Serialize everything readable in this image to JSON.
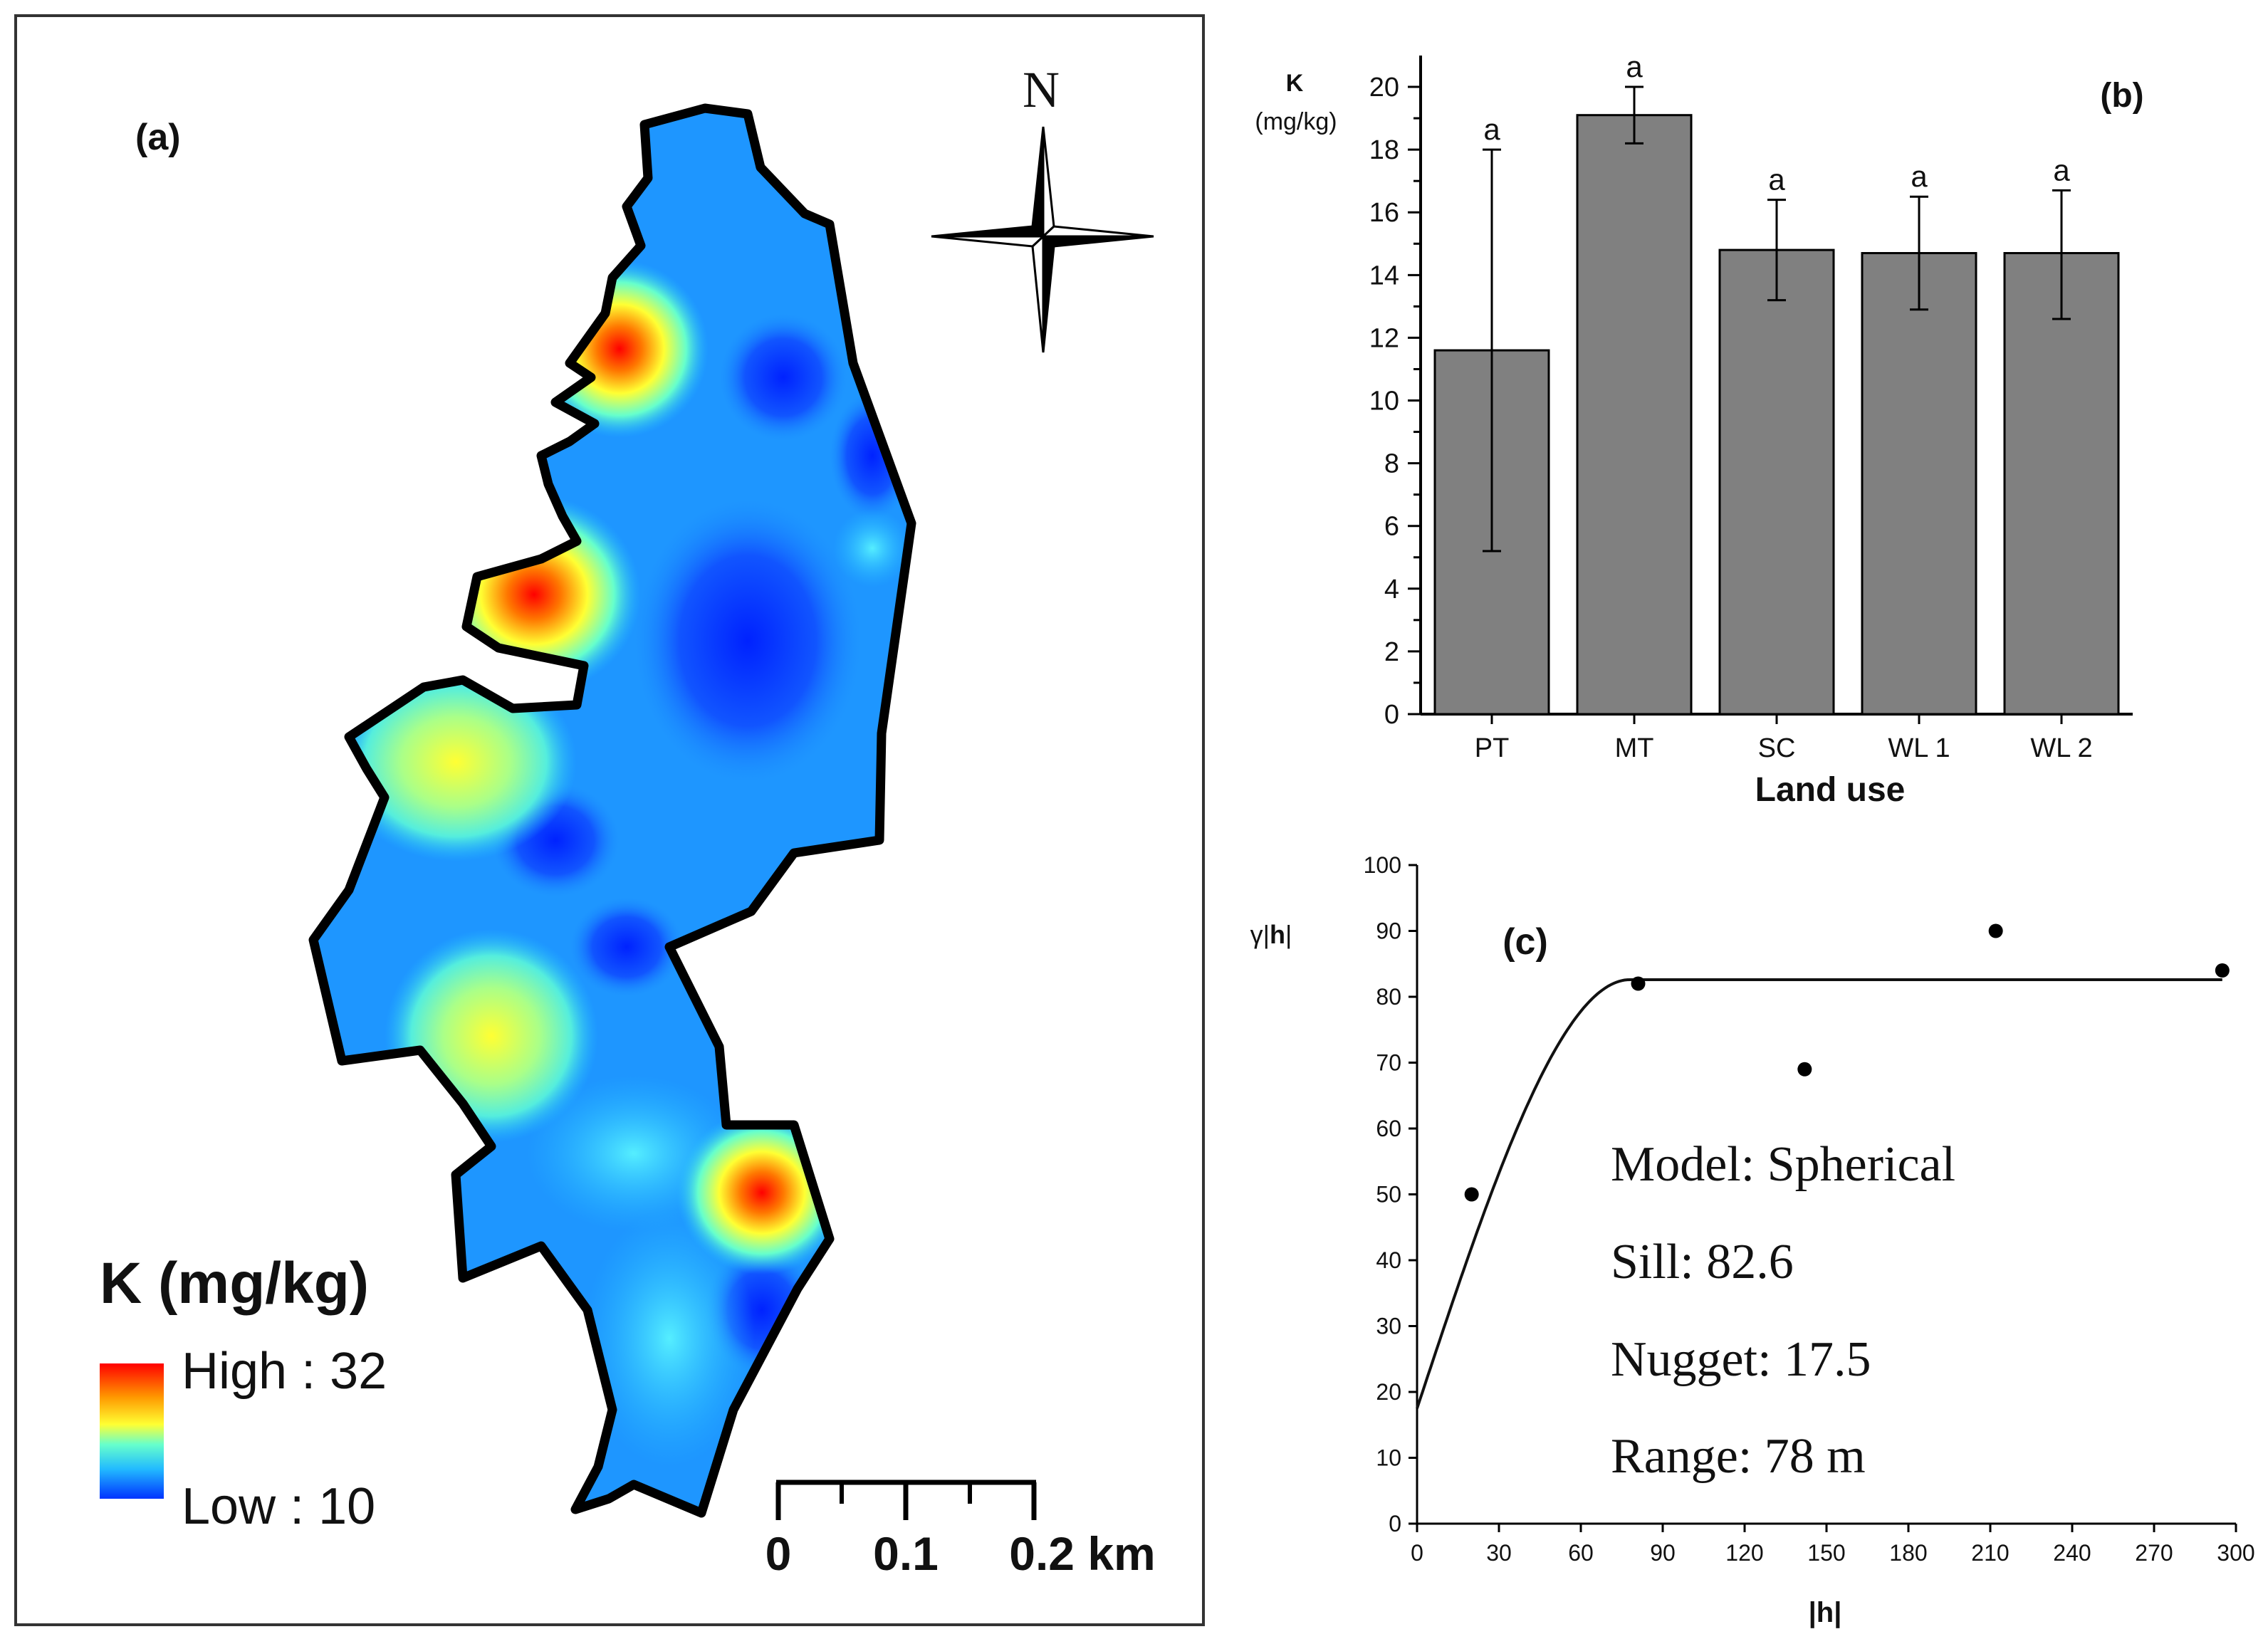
{
  "map": {
    "panel_label": "(a)",
    "north_label": "N",
    "legend": {
      "title": "K (mg/kg)",
      "high_label": "High : 32",
      "low_label": "Low : 10",
      "gradient_colors": [
        "#ff0000",
        "#ff9900",
        "#ffff33",
        "#66ffcc",
        "#22bbff",
        "#0033ff"
      ]
    },
    "scale_bar": {
      "labels": [
        "0",
        "0.1",
        "0.2 km"
      ]
    }
  },
  "chart_data": [
    {
      "type": "bar",
      "panel_label": "(b)",
      "ylabel": "K",
      "yunit": "(mg/kg)",
      "xlabel": "Land use",
      "categories": [
        "PT",
        "MT",
        "SC",
        "WL 1",
        "WL 2"
      ],
      "values": [
        11.6,
        19.1,
        14.8,
        14.7,
        14.7
      ],
      "error_low": [
        5.2,
        18.2,
        13.2,
        12.9,
        12.6
      ],
      "error_high": [
        18.0,
        20.0,
        16.4,
        16.5,
        16.7
      ],
      "letters": [
        "a",
        "a",
        "a",
        "a",
        "a"
      ],
      "ylim": [
        0,
        21
      ],
      "yticks": [
        0,
        2,
        4,
        6,
        8,
        10,
        12,
        14,
        16,
        18,
        20
      ],
      "bar_color": "#808080"
    },
    {
      "type": "scatter",
      "panel_label": "(c)",
      "ylabel_parts": [
        "γ|",
        "h",
        "|"
      ],
      "xlabel_parts": [
        "|",
        "h",
        "|"
      ],
      "x": [
        20,
        81,
        142,
        212,
        295
      ],
      "y": [
        50,
        82,
        69,
        90,
        84
      ],
      "model_curve": {
        "model": "Spherical",
        "nugget": 17.5,
        "sill": 82.6,
        "range": 78
      },
      "xlim": [
        0,
        300
      ],
      "ylim": [
        0,
        100
      ],
      "xticks": [
        0,
        30,
        60,
        90,
        120,
        150,
        180,
        210,
        240,
        270,
        300
      ],
      "yticks": [
        0,
        10,
        20,
        30,
        40,
        50,
        60,
        70,
        80,
        90,
        100
      ],
      "annotations": [
        "Model: Spherical",
        "Sill: 82.6",
        "Nugget: 17.5",
        "Range: 78 m"
      ]
    }
  ]
}
